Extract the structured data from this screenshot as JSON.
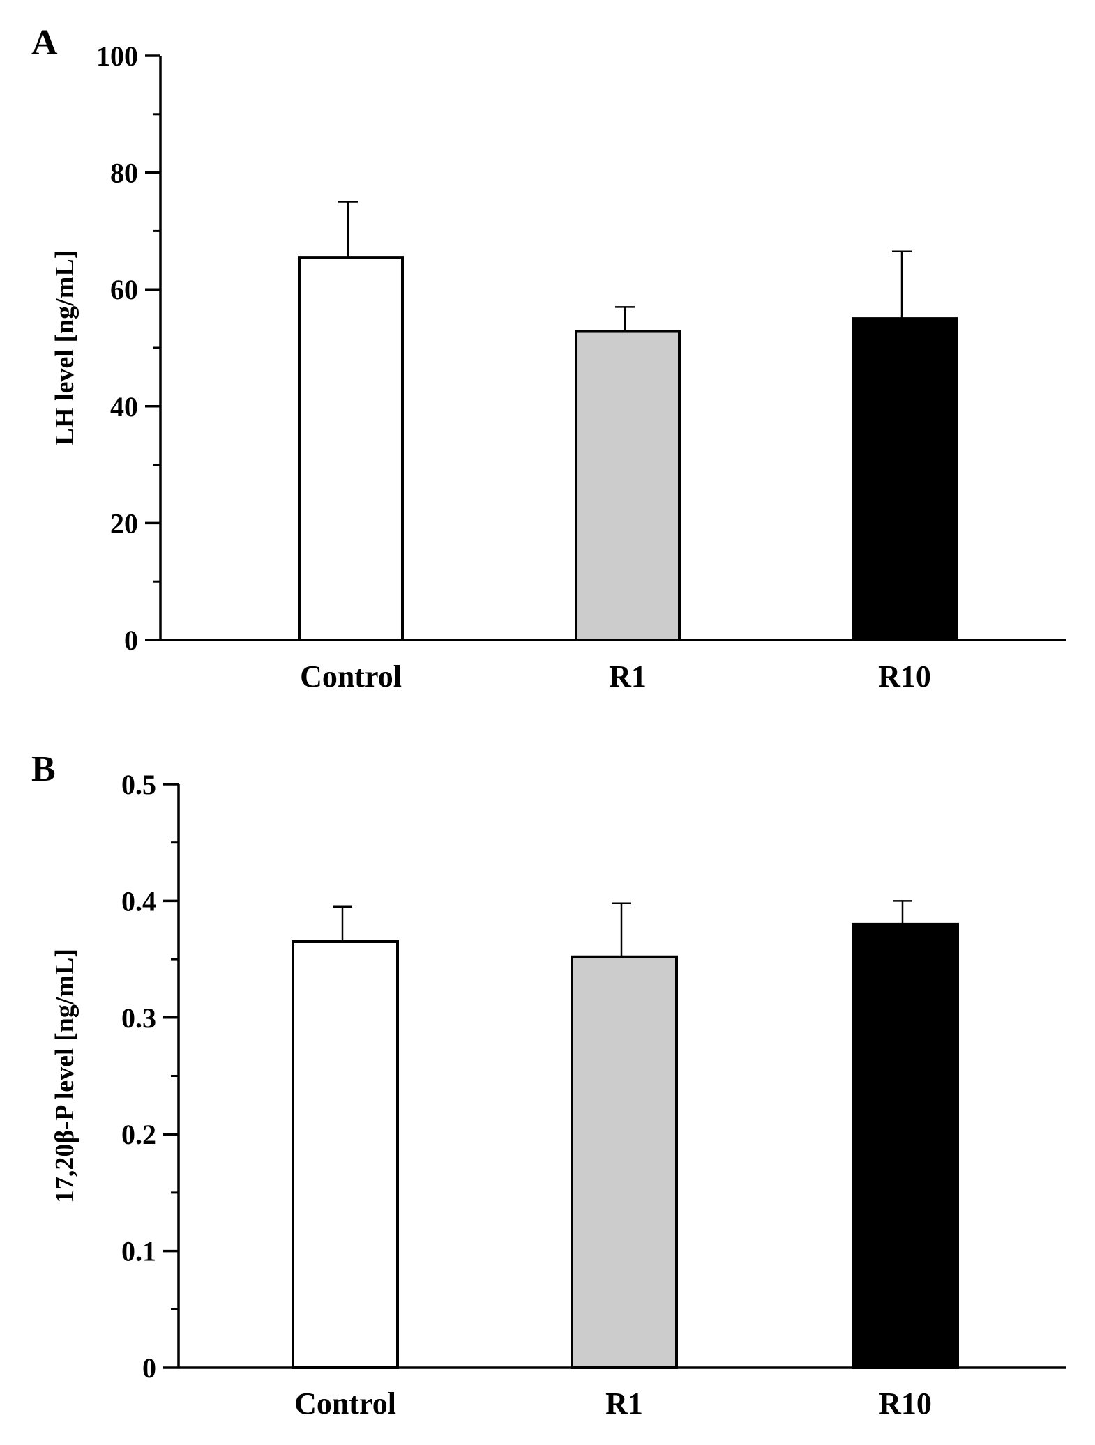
{
  "chart_data": [
    {
      "type": "bar",
      "panel_label": "A",
      "categories": [
        "Control",
        "R1",
        "R10"
      ],
      "values": [
        65.5,
        52.8,
        55.0
      ],
      "errors": [
        9.5,
        4.2,
        11.5
      ],
      "bar_colors": [
        "#ffffff",
        "#cccccc",
        "#000000"
      ],
      "ylabel": "LH level [ng/mL]",
      "xlabel": "",
      "ylim": [
        0,
        100
      ],
      "yticks": [
        0,
        20,
        40,
        60,
        80,
        100
      ],
      "ytick_labels": [
        "0",
        "20",
        "40",
        "60",
        "80",
        "100"
      ],
      "minor_tick_step": 10,
      "grid": false,
      "legend": "none"
    },
    {
      "type": "bar",
      "panel_label": "B",
      "categories": [
        "Control",
        "R1",
        "R10"
      ],
      "values": [
        0.365,
        0.352,
        0.38
      ],
      "errors": [
        0.03,
        0.046,
        0.02
      ],
      "bar_colors": [
        "#ffffff",
        "#cccccc",
        "#000000"
      ],
      "ylabel": "17,20β-P level [ng/mL]",
      "xlabel": "",
      "ylim": [
        0,
        0.5
      ],
      "yticks": [
        0,
        0.1,
        0.2,
        0.3,
        0.4,
        0.5
      ],
      "ytick_labels": [
        "0",
        "0.1",
        "0.2",
        "0.3",
        "0.4",
        "0.5"
      ],
      "minor_tick_step": 0.05,
      "grid": false,
      "legend": "none"
    }
  ]
}
